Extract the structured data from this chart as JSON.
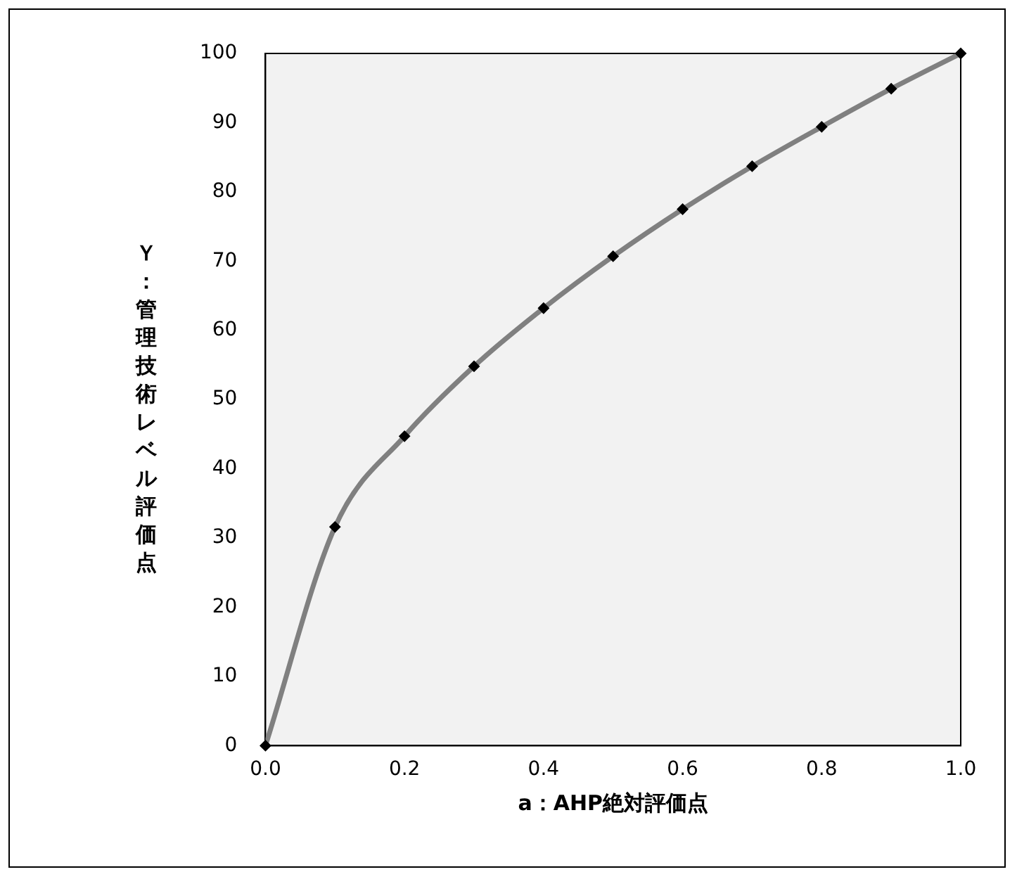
{
  "chart_data": {
    "type": "line",
    "xlabel": "a：AHP絶対評価点",
    "ylabel": "Ｙ：管理技術レベル評価点",
    "x": [
      0,
      0.1,
      0.2,
      0.3,
      0.4,
      0.5,
      0.6,
      0.7,
      0.8,
      0.9,
      1.0
    ],
    "series": [
      {
        "marker": "none",
        "color": "#808080",
        "values": [
          0,
          31.6,
          44.7,
          54.8,
          63.2,
          70.7,
          77.5,
          83.7,
          89.4,
          94.9,
          100
        ]
      },
      {
        "type": "scatter",
        "color": "#000000",
        "values": [
          0,
          31.6,
          44.7,
          54.8,
          63.2,
          70.7,
          77.5,
          83.7,
          89.4,
          94.9,
          100
        ]
      }
    ],
    "marker": "diamond",
    "xlim": [
      0,
      1
    ],
    "ylim": [
      0,
      100
    ],
    "xticks": [
      {
        "value": 0,
        "label": "0.0"
      },
      {
        "value": 0.2,
        "label": "0.2"
      },
      {
        "value": 0.4,
        "label": "0.4"
      },
      {
        "value": 0.6,
        "label": "0.6"
      },
      {
        "value": 0.8,
        "label": "0.8"
      },
      {
        "value": 1,
        "label": "1.0"
      }
    ],
    "yticks": [
      0,
      10,
      20,
      30,
      40,
      50,
      60,
      70,
      80,
      90,
      100
    ]
  }
}
